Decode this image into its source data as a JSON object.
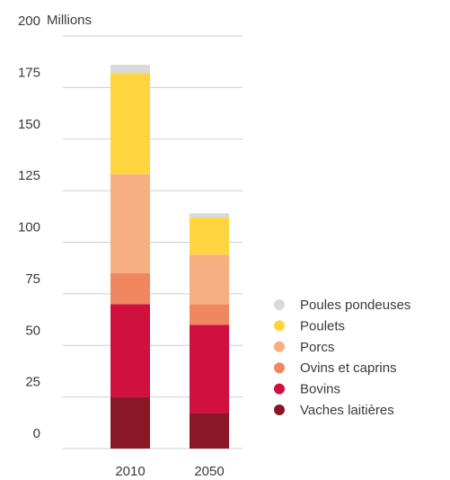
{
  "chart_data": {
    "type": "bar",
    "stacked": true,
    "categories": [
      "2010",
      "2050"
    ],
    "ylabel": "Millions",
    "ylim": [
      0,
      200
    ],
    "yticks": [
      "0",
      "25",
      "50",
      "75",
      "100",
      "125",
      "150",
      "175",
      "200"
    ],
    "grid": true,
    "legend_position": "right",
    "series": [
      {
        "name": "Vaches laitières",
        "values": [
          25,
          17
        ],
        "color": "#8a1725"
      },
      {
        "name": "Bovins",
        "values": [
          45,
          43
        ],
        "color": "#d0103f"
      },
      {
        "name": "Ovins et caprins",
        "values": [
          15,
          10
        ],
        "color": "#f08760"
      },
      {
        "name": "Porcs",
        "values": [
          48,
          24
        ],
        "color": "#f7ae82"
      },
      {
        "name": "Poulets",
        "values": [
          49,
          18
        ],
        "color": "#ffd53f"
      },
      {
        "name": "Poules pondeuses",
        "values": [
          4,
          2
        ],
        "color": "#d9d9d9"
      }
    ],
    "legend_order": [
      "Poules pondeuses",
      "Poulets",
      "Porcs",
      "Ovins et caprins",
      "Bovins",
      "Vaches laitières"
    ]
  }
}
